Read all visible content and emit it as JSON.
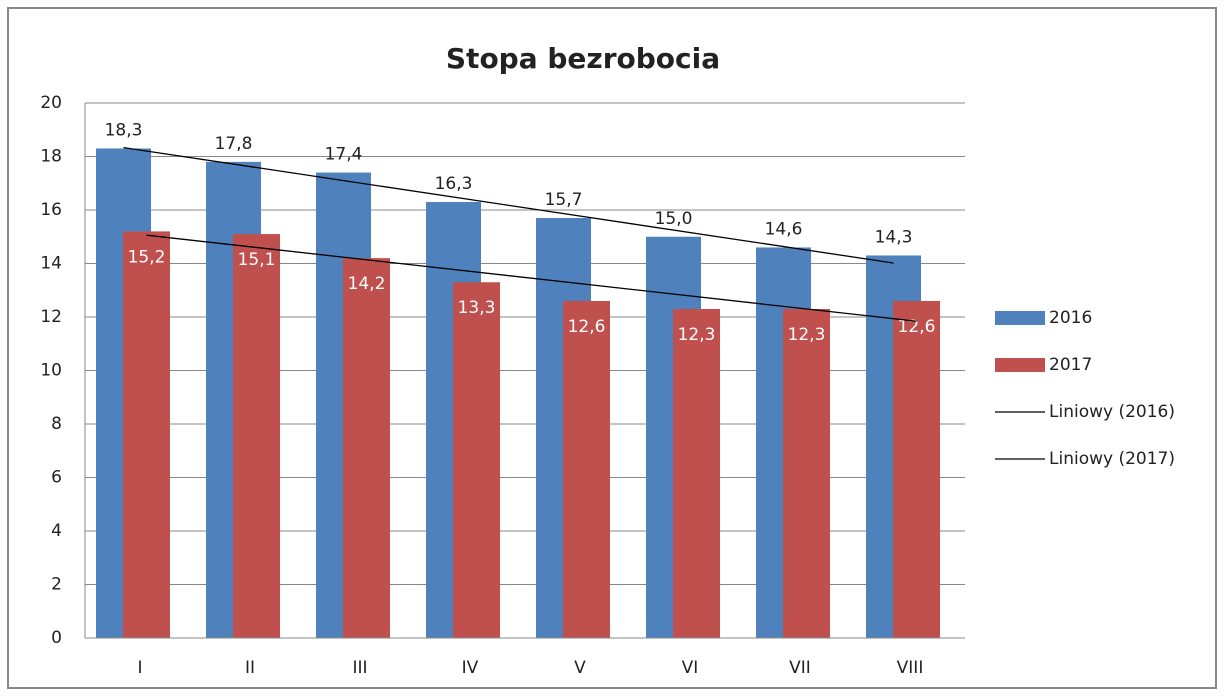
{
  "chart_data": {
    "type": "bar",
    "title": "Stopa bezrobocia",
    "categories": [
      "I",
      "II",
      "III",
      "IV",
      "V",
      "VI",
      "VII",
      "VIII"
    ],
    "series": [
      {
        "name": "2016",
        "color": "#4f81bd",
        "values": [
          18.3,
          17.8,
          17.4,
          16.3,
          15.7,
          15.0,
          14.6,
          14.3
        ],
        "value_labels": [
          "18,3",
          "17,8",
          "17,4",
          "16,3",
          "15,7",
          "15,0",
          "14,6",
          "14,3"
        ],
        "trendline": "Liniowy (2016)"
      },
      {
        "name": "2017",
        "color": "#c0504d",
        "values": [
          15.2,
          15.1,
          14.2,
          13.3,
          12.6,
          12.3,
          12.3,
          12.6
        ],
        "value_labels": [
          "15,2",
          "15,1",
          "14,2",
          "13,3",
          "12,6",
          "12,3",
          "12,3",
          "12,6"
        ],
        "trendline": "Liniowy (2017)"
      }
    ],
    "ylim": [
      0,
      20
    ],
    "yticks": [
      0,
      2,
      4,
      6,
      8,
      10,
      12,
      14,
      16,
      18,
      20
    ],
    "grid": true,
    "legend": "right"
  }
}
